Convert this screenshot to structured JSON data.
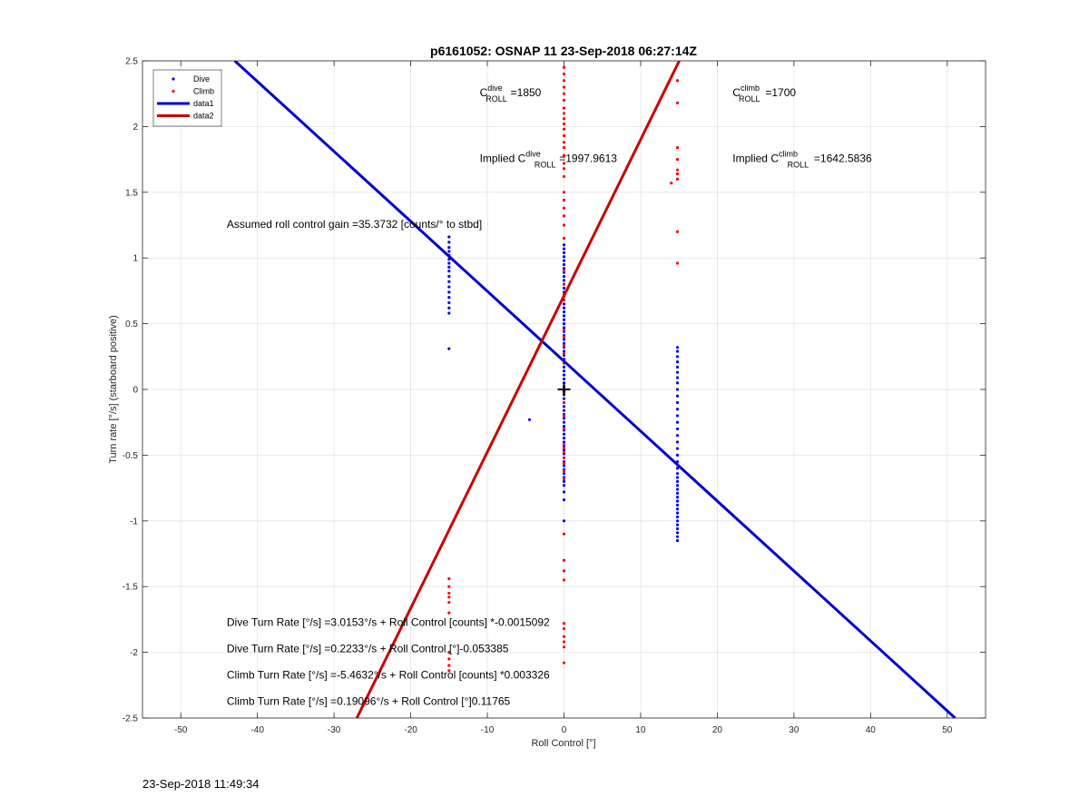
{
  "chart_data": {
    "type": "scatter",
    "title": "p6161052: OSNAP 11 23-Sep-2018 06:27:14Z",
    "xlabel": "Roll Control [°]",
    "ylabel": "Turn rate [°/s] (starboard positive)",
    "xlim": [
      -55,
      55
    ],
    "ylim": [
      -2.5,
      2.5
    ],
    "xticks": [
      -50,
      -40,
      -30,
      -20,
      -10,
      0,
      10,
      20,
      30,
      40,
      50
    ],
    "yticks": [
      -2.5,
      -2,
      -1.5,
      -1,
      -0.5,
      0,
      0.5,
      1,
      1.5,
      2,
      2.5
    ],
    "ytick_labels": [
      "-2.5",
      "-2",
      "-1.5",
      "-1",
      "-0.5",
      "0",
      "0.5",
      "1",
      "1.5",
      "2",
      "2.5"
    ],
    "grid": true,
    "legend_position": "top-left",
    "legend": [
      {
        "label": "Dive",
        "kind": "marker",
        "color": "#0000ff"
      },
      {
        "label": "Climb",
        "kind": "marker",
        "color": "#ff0000"
      },
      {
        "label": "data1",
        "kind": "line",
        "color": "#0000cc"
      },
      {
        "label": "data2",
        "kind": "line",
        "color": "#cc0000"
      }
    ],
    "series": [
      {
        "name": "Dive",
        "kind": "scatter",
        "color": "#0000ff",
        "groups": [
          {
            "x": -15.0,
            "y": [
              0.58,
              0.62,
              0.66,
              0.7,
              0.74,
              0.78,
              0.82,
              0.86,
              0.9,
              0.93,
              0.96,
              0.99,
              1.02,
              1.05,
              1.08,
              1.12,
              1.16,
              0.31
            ]
          },
          {
            "x": 0.0,
            "y": [
              1.1,
              1.07,
              1.04,
              1.01,
              0.98,
              0.95,
              0.92,
              0.89,
              0.86,
              0.83,
              0.8,
              0.77,
              0.74,
              0.71,
              0.68,
              0.65,
              0.62,
              0.59,
              0.56,
              0.53,
              0.5,
              0.47,
              0.44,
              0.41,
              0.38,
              0.35,
              0.32,
              0.29,
              0.26,
              0.23,
              0.2,
              0.17,
              0.14,
              0.11,
              0.08,
              0.05,
              0.02,
              -0.01,
              -0.04,
              -0.07,
              -0.1,
              -0.13,
              -0.16,
              -0.19,
              -0.22,
              -0.25,
              -0.28,
              -0.31,
              -0.34,
              -0.37,
              -0.4,
              -0.43,
              -0.46,
              -0.49,
              -0.52,
              -0.55,
              -0.58,
              -0.61,
              -0.64,
              -0.67,
              -0.7,
              -0.73,
              -0.78,
              -0.84,
              -1.0
            ]
          },
          {
            "x": 14.8,
            "y": [
              0.32,
              0.29,
              0.25,
              0.21,
              0.17,
              0.13,
              0.09,
              0.05,
              0.0,
              -0.05,
              -0.1,
              -0.15,
              -0.2,
              -0.25,
              -0.3,
              -0.35,
              -0.4,
              -0.45,
              -0.5,
              -0.55,
              -0.6,
              -0.64,
              -0.67,
              -0.7,
              -0.73,
              -0.76,
              -0.79,
              -0.82,
              -0.85,
              -0.88,
              -0.91,
              -0.94,
              -0.97,
              -1.0,
              -1.03,
              -1.06,
              -1.09,
              -1.12,
              -1.15
            ]
          }
        ],
        "points": [
          {
            "x": -4.5,
            "y": -0.23
          }
        ]
      },
      {
        "name": "Climb",
        "kind": "scatter",
        "color": "#ff0000",
        "groups": [
          {
            "x": -15.0,
            "y": [
              -1.44,
              -1.5,
              -1.55,
              -1.58,
              -1.62,
              -1.7,
              -2.0,
              -2.05,
              -2.1,
              -2.14
            ]
          },
          {
            "x": 0.0,
            "y": [
              2.45,
              2.4,
              2.35,
              2.3,
              2.25,
              2.2,
              2.14,
              2.1,
              2.06,
              2.02,
              1.98,
              1.93,
              1.88,
              1.84,
              1.78,
              1.72,
              1.68,
              1.62,
              1.5,
              1.44,
              1.38,
              1.32,
              1.25,
              1.15,
              0.9,
              0.8,
              0.72,
              0.68,
              0.45,
              0.4,
              0.33,
              0.27,
              0.2,
              -0.02,
              -0.1,
              -0.2,
              -0.3,
              -0.42,
              -0.45,
              -0.48,
              -0.52,
              -0.56,
              -0.62,
              -0.68,
              -1.1,
              -1.3,
              -1.38,
              -1.45,
              -1.78,
              -1.82,
              -1.88,
              -1.92,
              -1.96,
              -2.08
            ]
          },
          {
            "x": 14.8,
            "y": [
              2.35,
              2.18,
              1.84,
              1.75,
              1.67,
              1.64,
              1.6,
              1.2,
              0.96
            ]
          },
          {
            "x": 14.0,
            "y": [
              1.57
            ]
          }
        ]
      },
      {
        "name": "data1",
        "kind": "line",
        "color": "#0000cc",
        "x": [
          -42.96,
          51.03
        ],
        "y": [
          2.5,
          -2.5
        ]
      },
      {
        "name": "data2",
        "kind": "line",
        "color": "#cc0000",
        "x": [
          -27.03,
          15.04
        ],
        "y": [
          -2.5,
          2.5
        ]
      }
    ],
    "origin_marker": {
      "x": 0,
      "y": 0,
      "symbol": "+"
    },
    "annotations": {
      "c_dive": {
        "prefix": "C",
        "sup": "dive",
        "sub": "ROLL",
        "suffix": " =1850",
        "x": -11,
        "y": 2.23
      },
      "c_climb": {
        "prefix": "C",
        "sup": "climb",
        "sub": "ROLL",
        "suffix": " =1700",
        "x": 22,
        "y": 2.23
      },
      "implied_dive": {
        "prefix": "Implied C",
        "sup": "dive",
        "sub": "ROLL",
        "suffix": " =1997.9613",
        "x": -11,
        "y": 1.73
      },
      "implied_climb": {
        "prefix": "Implied C",
        "sup": "climb",
        "sub": "ROLL",
        "suffix": " =1642.5836",
        "x": 22,
        "y": 1.73
      },
      "gain": {
        "text": "Assumed roll control gain =35.3732 [counts/° to stbd]",
        "x": -44,
        "y": 1.23
      },
      "fits": [
        {
          "text": "Dive Turn Rate [°/s] =3.0153°/s + Roll Control [counts] *-0.0015092",
          "x": -44,
          "y": -1.8
        },
        {
          "text": "Dive Turn Rate [°/s] =0.2233°/s + Roll Control [°]-0.053385",
          "x": -44,
          "y": -2.0
        },
        {
          "text": "Climb Turn Rate [°/s] =-5.4632°/s + Roll Control [counts] *0.003326",
          "x": -44,
          "y": -2.2
        },
        {
          "text": "Climb Turn Rate [°/s] =0.19096°/s + Roll Control [°]0.11765",
          "x": -44,
          "y": -2.4
        }
      ]
    }
  },
  "footer": {
    "timestamp": "23-Sep-2018 11:49:34"
  }
}
